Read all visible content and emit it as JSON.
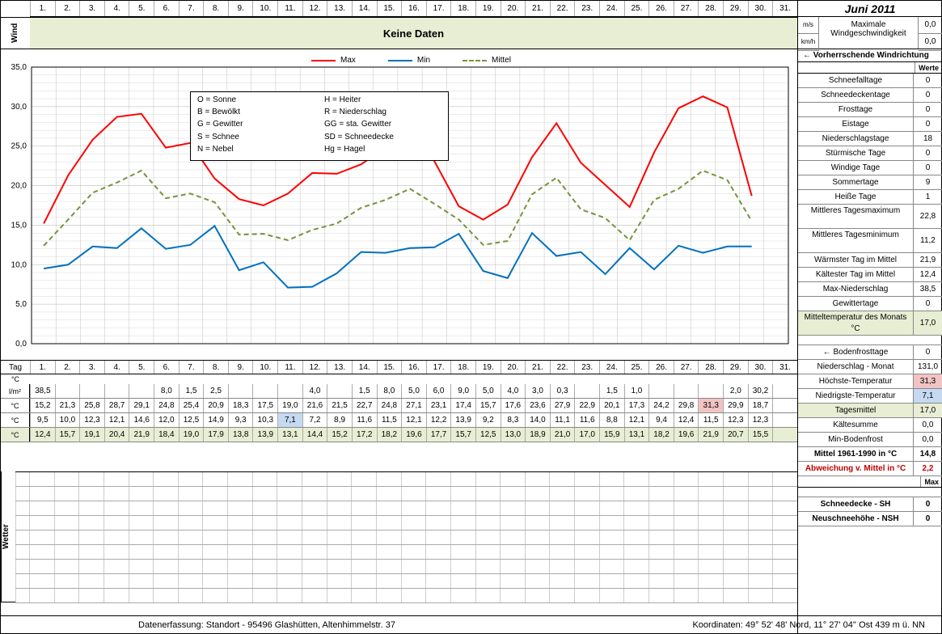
{
  "title": "Juni 2011",
  "wind_section_label": "Wind",
  "wind_body_text": "Keine Daten",
  "wind_units": [
    "m/s",
    "km/h"
  ],
  "wind_label": "Maximale Windgeschwindigkeit",
  "wind_values": [
    "0,0",
    "0,0"
  ],
  "wind_direction_label": "← Vorherrschende Windrichtung",
  "werte_label": "Werte",
  "tag_label": "Tag",
  "c_label": "°C",
  "day_headers": [
    "1.",
    "2.",
    "3.",
    "4.",
    "5.",
    "6.",
    "7.",
    "8.",
    "9.",
    "10.",
    "11.",
    "12.",
    "13.",
    "14.",
    "15.",
    "16.",
    "17.",
    "18.",
    "19.",
    "20.",
    "21.",
    "22.",
    "23.",
    "24.",
    "25.",
    "26.",
    "27.",
    "28.",
    "29.",
    "30.",
    "31."
  ],
  "chart": {
    "type": "line",
    "ylim": [
      0,
      35
    ],
    "ytick_step": 5,
    "x_count": 31,
    "background_color": "#ffffff",
    "grid_color": "#c0c0c0",
    "colors": {
      "max": "#ff0000",
      "min": "#0070c0",
      "mittel": "#77933c"
    },
    "line_width": 2,
    "mittel_dash": "6,4",
    "legend_labels": {
      "max": "Max",
      "min": "Min",
      "mittel": "Mittel"
    },
    "key_box": [
      "O = Sonne",
      "H = Heiter",
      "B = Bewölkt",
      "R = Niederschlag",
      "G = Gewitter",
      "GG = sta. Gewitter",
      "S = Schnee",
      "SD = Schneedecke",
      "N = Nebel",
      "Hg = Hagel"
    ],
    "series": {
      "max": [
        15.2,
        21.3,
        25.8,
        28.7,
        29.1,
        24.8,
        25.4,
        20.9,
        18.3,
        17.5,
        19.0,
        21.6,
        21.5,
        22.7,
        24.8,
        27.1,
        23.1,
        17.4,
        15.7,
        17.6,
        23.6,
        27.9,
        22.9,
        20.1,
        17.3,
        24.2,
        29.8,
        31.3,
        29.9,
        18.7
      ],
      "min": [
        9.5,
        10.0,
        12.3,
        12.1,
        14.6,
        12.0,
        12.5,
        14.9,
        9.3,
        10.3,
        7.1,
        7.2,
        8.9,
        11.6,
        11.5,
        12.1,
        12.2,
        13.9,
        9.2,
        8.3,
        14.0,
        11.1,
        11.6,
        8.8,
        12.1,
        9.4,
        12.4,
        11.5,
        12.3,
        12.3
      ],
      "mittel": [
        12.4,
        15.7,
        19.1,
        20.4,
        21.9,
        18.4,
        19.0,
        17.9,
        13.8,
        13.9,
        13.1,
        14.4,
        15.2,
        17.2,
        18.2,
        19.6,
        17.7,
        15.7,
        12.5,
        13.0,
        18.9,
        21.0,
        17.0,
        15.9,
        13.1,
        18.2,
        19.6,
        21.9,
        20.7,
        15.5
      ]
    }
  },
  "data_rows": [
    {
      "label": "l/m²",
      "green": false,
      "values": [
        "38,5",
        "",
        "",
        "",
        "",
        "8,0",
        "1,5",
        "2,5",
        "",
        "",
        "",
        "4,0",
        "",
        "1,5",
        "8,0",
        "5,0",
        "6,0",
        "9,0",
        "5,0",
        "4,0",
        "3,0",
        "0,3",
        "",
        "1,5",
        "1,0",
        "",
        "",
        "",
        "2,0",
        "30,2",
        ""
      ]
    },
    {
      "label": "°C",
      "green": false,
      "highlight_idx": 27,
      "highlight_class": "highlight-red",
      "values": [
        "15,2",
        "21,3",
        "25,8",
        "28,7",
        "29,1",
        "24,8",
        "25,4",
        "20,9",
        "18,3",
        "17,5",
        "19,0",
        "21,6",
        "21,5",
        "22,7",
        "24,8",
        "27,1",
        "23,1",
        "17,4",
        "15,7",
        "17,6",
        "23,6",
        "27,9",
        "22,9",
        "20,1",
        "17,3",
        "24,2",
        "29,8",
        "31,3",
        "29,9",
        "18,7",
        ""
      ]
    },
    {
      "label": "°C",
      "green": false,
      "highlight_idx": 10,
      "highlight_class": "highlight-blue",
      "values": [
        "9,5",
        "10,0",
        "12,3",
        "12,1",
        "14,6",
        "12,0",
        "12,5",
        "14,9",
        "9,3",
        "10,3",
        "7,1",
        "7,2",
        "8,9",
        "11,6",
        "11,5",
        "12,1",
        "12,2",
        "13,9",
        "9,2",
        "8,3",
        "14,0",
        "11,1",
        "11,6",
        "8,8",
        "12,1",
        "9,4",
        "12,4",
        "11,5",
        "12,3",
        "12,3",
        ""
      ]
    },
    {
      "label": "°C",
      "green": true,
      "values": [
        "12,4",
        "15,7",
        "19,1",
        "20,4",
        "21,9",
        "18,4",
        "19,0",
        "17,9",
        "13,8",
        "13,9",
        "13,1",
        "14,4",
        "15,2",
        "17,2",
        "18,2",
        "19,6",
        "17,7",
        "15,7",
        "12,5",
        "13,0",
        "18,9",
        "21,0",
        "17,0",
        "15,9",
        "13,1",
        "18,2",
        "19,6",
        "21,9",
        "20,7",
        "15,5",
        ""
      ]
    }
  ],
  "wetter_label": "Wetter",
  "stats": [
    {
      "label": "Schneefalltage",
      "value": "0"
    },
    {
      "label": "Schneedeckentage",
      "value": "0"
    },
    {
      "label": "Frosttage",
      "value": "0"
    },
    {
      "label": "Eistage",
      "value": "0"
    },
    {
      "label": "Niederschlagstage",
      "value": "18"
    },
    {
      "label": "Stürmische Tage",
      "value": "0"
    },
    {
      "label": "Windige Tage",
      "value": "0"
    },
    {
      "label": "Sommertage",
      "value": "9"
    },
    {
      "label": "Heiße Tage",
      "value": "1"
    },
    {
      "label": "Mittleres Tagesmaximum",
      "value": "22,8",
      "tall": true
    },
    {
      "label": "Mittleres Tagesminimum",
      "value": "11,2",
      "tall": true
    },
    {
      "label": "Wärmster Tag im Mittel",
      "value": "21,9"
    },
    {
      "label": "Kältester Tag im Mittel",
      "value": "12,4"
    },
    {
      "label": "Max-Niederschlag",
      "value": "38,5"
    },
    {
      "label": "Gewittertage",
      "value": "0"
    },
    {
      "label": "Mitteltemperatur des Monats °C",
      "value": "17,0",
      "tall": true,
      "green": true
    }
  ],
  "stats2": [
    {
      "label": "← Bodenfrosttage",
      "value": "0"
    },
    {
      "label": "Niederschlag - Monat",
      "value": "131,0"
    },
    {
      "label": "Höchste-Temperatur",
      "value": "31,3",
      "hl": "red"
    },
    {
      "label": "Niedrigste-Temperatur",
      "value": "7,1",
      "hl": "blue"
    },
    {
      "label": "Tagesmittel",
      "value": "17,0",
      "green": true
    },
    {
      "label": "Kältesumme",
      "value": "0,0"
    },
    {
      "label": "Min-Bodenfrost",
      "value": "0,0"
    },
    {
      "label": "Mittel 1961-1990 in °C",
      "value": "14,8",
      "bold": true
    },
    {
      "label": "Abweichung v. Mittel in °C",
      "value": "2,2",
      "red": true
    }
  ],
  "max_label": "Max",
  "stats3": [
    {
      "label": "Schneedecke -   SH",
      "value": "0",
      "bold": true
    },
    {
      "label": "Neuschneehöhe - NSH",
      "value": "0",
      "bold": true
    }
  ],
  "footer_left": "Datenerfassung:  Standort -   95496  Glashütten,  Altenhimmelstr. 37",
  "footer_right": "Koordinaten:   49° 52' 48' Nord,    11° 27' 04'' Ost    439 m ü. NN"
}
